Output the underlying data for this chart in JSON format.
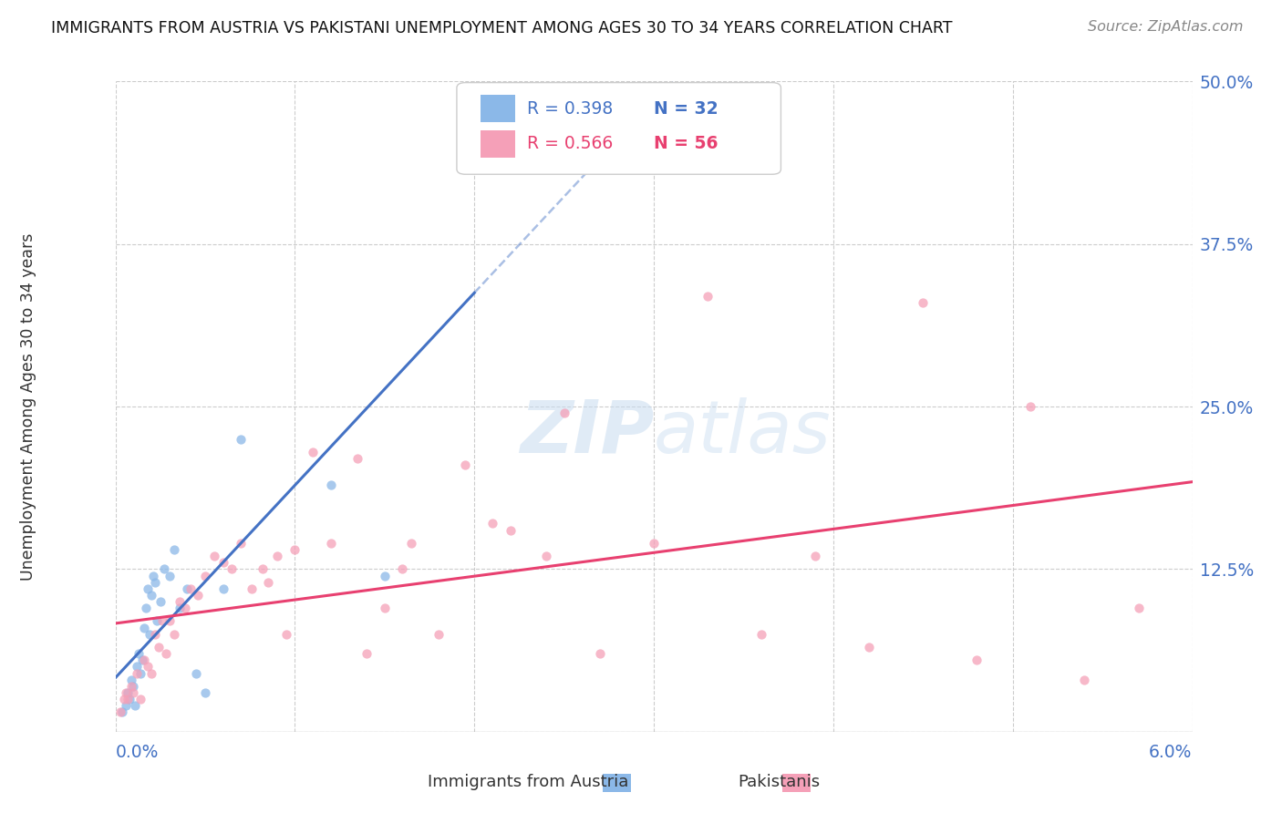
{
  "title": "IMMIGRANTS FROM AUSTRIA VS PAKISTANI UNEMPLOYMENT AMONG AGES 30 TO 34 YEARS CORRELATION CHART",
  "source": "Source: ZipAtlas.com",
  "ylabel": "Unemployment Among Ages 30 to 34 years",
  "xlim": [
    0.0,
    6.0
  ],
  "ylim": [
    0.0,
    50.0
  ],
  "yticks": [
    0.0,
    12.5,
    25.0,
    37.5,
    50.0
  ],
  "ytick_labels": [
    "",
    "12.5%",
    "25.0%",
    "37.5%",
    "50.0%"
  ],
  "xtick_left": "0.0%",
  "xtick_right": "6.0%",
  "legend_r1": "R = 0.398",
  "legend_n1": "N = 32",
  "legend_r2": "R = 0.566",
  "legend_n2": "N = 56",
  "legend_label1": "Immigrants from Austria",
  "legend_label2": "Pakistanis",
  "color_austria": "#8BB8E8",
  "color_pakistan": "#F5A0B8",
  "color_austria_line": "#4472C4",
  "color_pakistan_line": "#E84070",
  "color_blue_text": "#4472C4",
  "color_pink_text": "#E84070",
  "watermark_color": "#C8DCF0",
  "austria_x": [
    0.04,
    0.06,
    0.07,
    0.08,
    0.09,
    0.1,
    0.11,
    0.12,
    0.13,
    0.14,
    0.15,
    0.16,
    0.17,
    0.18,
    0.19,
    0.2,
    0.21,
    0.22,
    0.23,
    0.25,
    0.27,
    0.3,
    0.33,
    0.36,
    0.4,
    0.45,
    0.5,
    0.6,
    0.7,
    1.2,
    1.5,
    2.0
  ],
  "austria_y": [
    1.5,
    2.0,
    3.0,
    2.5,
    4.0,
    3.5,
    2.0,
    5.0,
    6.0,
    4.5,
    5.5,
    8.0,
    9.5,
    11.0,
    7.5,
    10.5,
    12.0,
    11.5,
    8.5,
    10.0,
    12.5,
    12.0,
    14.0,
    9.5,
    11.0,
    4.5,
    3.0,
    11.0,
    22.5,
    19.0,
    12.0,
    44.0
  ],
  "pakistan_x": [
    0.03,
    0.05,
    0.06,
    0.07,
    0.09,
    0.1,
    0.12,
    0.14,
    0.16,
    0.18,
    0.2,
    0.22,
    0.24,
    0.26,
    0.28,
    0.3,
    0.33,
    0.36,
    0.39,
    0.42,
    0.46,
    0.5,
    0.55,
    0.6,
    0.65,
    0.7,
    0.76,
    0.82,
    0.9,
    1.0,
    1.1,
    1.2,
    1.35,
    1.5,
    1.65,
    1.8,
    1.95,
    2.1,
    2.4,
    2.7,
    3.0,
    3.3,
    3.6,
    3.9,
    4.2,
    4.5,
    4.8,
    5.1,
    5.4,
    5.7,
    2.2,
    2.5,
    1.6,
    1.4,
    0.85,
    0.95
  ],
  "pakistan_y": [
    1.5,
    2.5,
    3.0,
    2.5,
    3.5,
    3.0,
    4.5,
    2.5,
    5.5,
    5.0,
    4.5,
    7.5,
    6.5,
    8.5,
    6.0,
    8.5,
    7.5,
    10.0,
    9.5,
    11.0,
    10.5,
    12.0,
    13.5,
    13.0,
    12.5,
    14.5,
    11.0,
    12.5,
    13.5,
    14.0,
    21.5,
    14.5,
    21.0,
    9.5,
    14.5,
    7.5,
    20.5,
    16.0,
    13.5,
    6.0,
    14.5,
    33.5,
    7.5,
    13.5,
    6.5,
    33.0,
    5.5,
    25.0,
    4.0,
    9.5,
    15.5,
    24.5,
    12.5,
    6.0,
    11.5,
    7.5
  ]
}
